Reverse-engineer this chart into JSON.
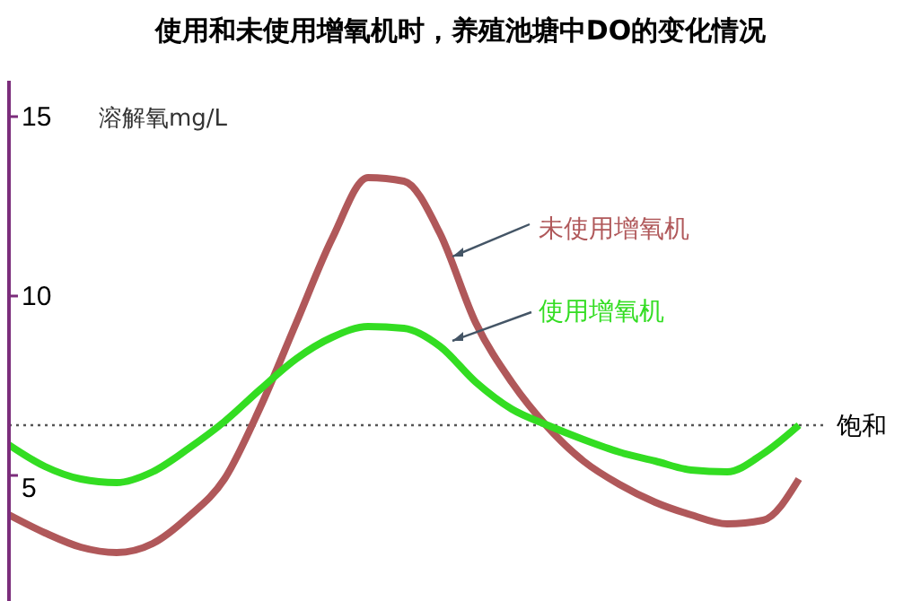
{
  "chart_data": {
    "type": "line",
    "title": "使用和未使用增氧机时，养殖池塘中DO的变化情况",
    "ylabel": "溶解氧mg/L",
    "categories": [
      null,
      null,
      null,
      null,
      null,
      null,
      null,
      null,
      null,
      null,
      null,
      null,
      null,
      null,
      null,
      null,
      null,
      null,
      null,
      null,
      null,
      null,
      null,
      null,
      null,
      null
    ],
    "series": [
      {
        "name": "未使用增氧机",
        "color": "#b0585a",
        "values": [
          3.9,
          3.4,
          3.0,
          2.85,
          3.1,
          3.85,
          4.9,
          6.9,
          9.25,
          11.6,
          13.3,
          13.2,
          11.75,
          9.25,
          7.6,
          6.35,
          5.4,
          4.75,
          4.25,
          3.9,
          3.65,
          3.75,
          4.9,
          null,
          null,
          null
        ]
      },
      {
        "name": "使用增氧机",
        "color": "#33dd22",
        "values": [
          5.85,
          5.25,
          4.9,
          4.8,
          5.1,
          5.75,
          6.5,
          7.4,
          8.25,
          8.85,
          9.15,
          9.1,
          8.6,
          7.6,
          6.85,
          6.4,
          6.0,
          5.65,
          5.4,
          5.15,
          5.1,
          5.6,
          6.4,
          null,
          null,
          null
        ]
      }
    ],
    "ylim": [
      1.5,
      16
    ],
    "yticks": [
      5,
      10,
      15
    ],
    "grid": false,
    "marker": "none",
    "line_style": "solid",
    "ref_lines": [
      {
        "axis": "y",
        "value": 6.4,
        "label": "饱和",
        "color": "#555555",
        "line_style": "dotted"
      }
    ]
  }
}
